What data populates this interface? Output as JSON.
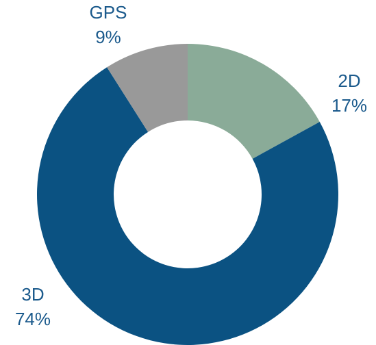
{
  "chart_data": {
    "type": "donut",
    "categories": [
      "2D",
      "3D",
      "GPS"
    ],
    "values": [
      17,
      74,
      9
    ],
    "value_labels": [
      "17%",
      "74%",
      "9%"
    ],
    "colors": [
      "#8aab98",
      "#0b5282",
      "#999999"
    ]
  }
}
